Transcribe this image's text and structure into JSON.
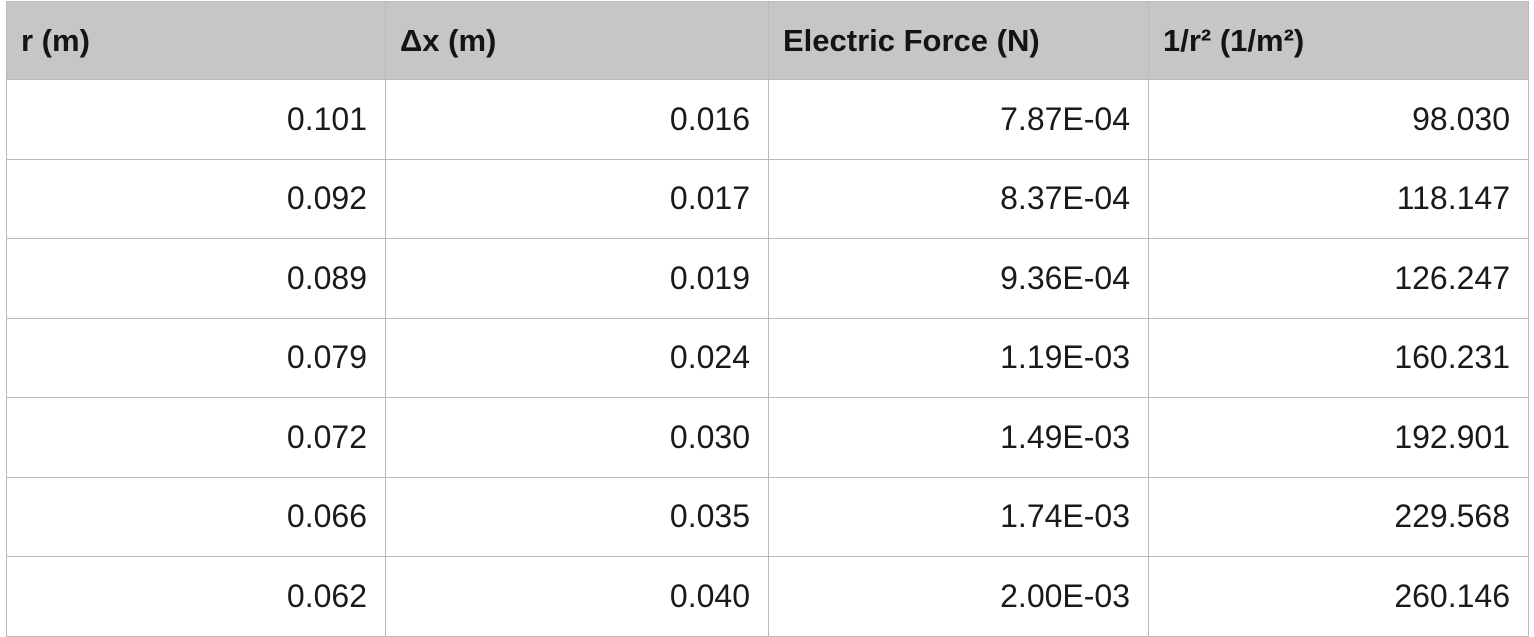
{
  "table": {
    "headers": [
      "r (m)",
      "Δx (m)",
      "Electric Force (N)",
      "1/r² (1/m²)"
    ],
    "rows": [
      [
        "0.101",
        "0.016",
        "7.87E-04",
        "98.030"
      ],
      [
        "0.092",
        "0.017",
        "8.37E-04",
        "118.147"
      ],
      [
        "0.089",
        "0.019",
        "9.36E-04",
        "126.247"
      ],
      [
        "0.079",
        "0.024",
        "1.19E-03",
        "160.231"
      ],
      [
        "0.072",
        "0.030",
        "1.49E-03",
        "192.901"
      ],
      [
        "0.066",
        "0.035",
        "1.74E-03",
        "229.568"
      ],
      [
        "0.062",
        "0.040",
        "2.00E-03",
        "260.146"
      ]
    ]
  }
}
